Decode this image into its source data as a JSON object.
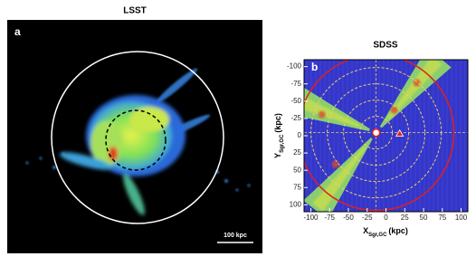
{
  "panels": [
    {
      "title": "LSST",
      "label": "a",
      "scale_bar": "100 kpc"
    },
    {
      "title": "SDSS",
      "label": "b",
      "x_label": "X",
      "x_label_sub": "Sgr,GC",
      "x_label_unit": "(kpc)",
      "y_label": "Y",
      "y_label_sub": "Sgr,GC",
      "y_label_unit": "(kpc)",
      "xlim": [
        -109,
        109
      ],
      "xticks": [
        -100,
        -75,
        -50,
        -25,
        0,
        25,
        50,
        75,
        100
      ],
      "ylim": [
        -110,
        110
      ],
      "yticks": [
        -100,
        -75,
        -50,
        -25,
        0,
        25,
        50,
        75,
        100
      ]
    }
  ]
}
